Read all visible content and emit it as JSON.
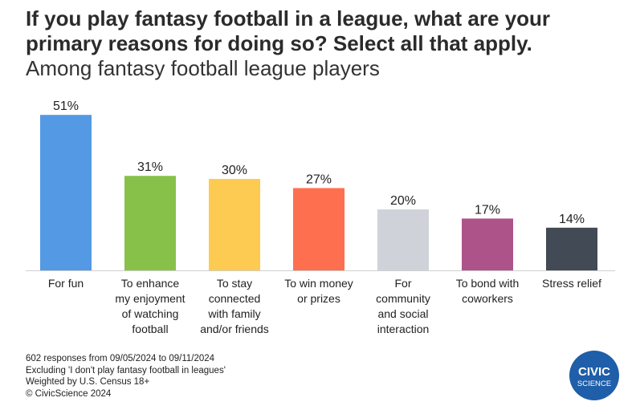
{
  "title": "If you play fantasy football in a league, what are your primary reasons for doing so? Select all that apply.",
  "subtitle": "Among fantasy football league players",
  "chart_data": {
    "type": "bar",
    "categories": [
      [
        "For fun"
      ],
      [
        "To enhance",
        "my enjoyment",
        "of watching",
        "football"
      ],
      [
        "To stay",
        "connected",
        "with family",
        "and/or friends"
      ],
      [
        "To win money",
        "or prizes"
      ],
      [
        "For",
        "community",
        "and social",
        "interaction"
      ],
      [
        "To bond with",
        "coworkers"
      ],
      [
        "Stress relief"
      ]
    ],
    "values": [
      51,
      31,
      30,
      27,
      20,
      17,
      14
    ],
    "value_labels": [
      "51%",
      "31%",
      "30%",
      "27%",
      "20%",
      "17%",
      "14%"
    ],
    "colors": [
      "#5499e3",
      "#88c14a",
      "#fdcb52",
      "#fe6f4f",
      "#cfd3d9",
      "#ae5389",
      "#424a55"
    ],
    "ylim": [
      0,
      55
    ],
    "grid": false,
    "legend": "none"
  },
  "notes": [
    "602 responses from 09/05/2024 to 09/11/2024",
    "Excluding 'I don't play fantasy football in leagues'",
    "Weighted by U.S. Census 18+",
    "© CivicScience 2024"
  ],
  "logo": {
    "line1": "CIVIC",
    "line2": "SCIENCE",
    "color": "#1f5ea8"
  }
}
